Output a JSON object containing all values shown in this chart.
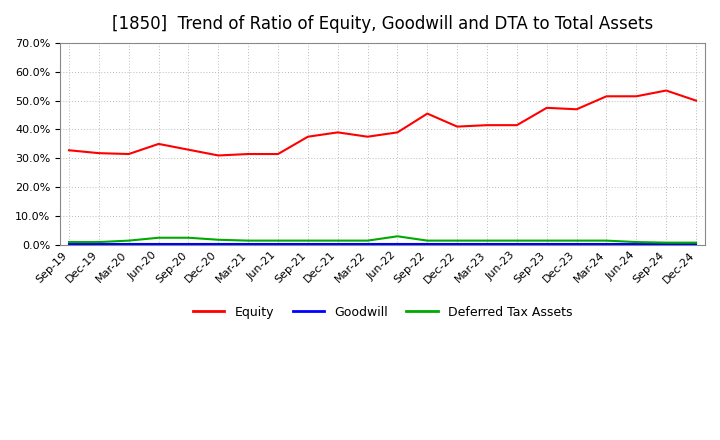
{
  "title": "[1850]  Trend of Ratio of Equity, Goodwill and DTA to Total Assets",
  "x_labels": [
    "Sep-19",
    "Dec-19",
    "Mar-20",
    "Jun-20",
    "Sep-20",
    "Dec-20",
    "Mar-21",
    "Jun-21",
    "Sep-21",
    "Dec-21",
    "Mar-22",
    "Jun-22",
    "Sep-22",
    "Dec-22",
    "Mar-23",
    "Jun-23",
    "Sep-23",
    "Dec-23",
    "Mar-24",
    "Jun-24",
    "Sep-24",
    "Dec-24"
  ],
  "equity": [
    0.328,
    0.318,
    0.315,
    0.35,
    0.33,
    0.31,
    0.315,
    0.315,
    0.375,
    0.39,
    0.375,
    0.39,
    0.455,
    0.41,
    0.415,
    0.415,
    0.475,
    0.47,
    0.515,
    0.515,
    0.535,
    0.5
  ],
  "goodwill": [
    0.003,
    0.003,
    0.003,
    0.003,
    0.003,
    0.003,
    0.003,
    0.003,
    0.003,
    0.003,
    0.003,
    0.003,
    0.003,
    0.003,
    0.003,
    0.003,
    0.003,
    0.003,
    0.003,
    0.003,
    0.003,
    0.003
  ],
  "dta": [
    0.01,
    0.01,
    0.015,
    0.025,
    0.025,
    0.018,
    0.015,
    0.015,
    0.015,
    0.015,
    0.015,
    0.03,
    0.015,
    0.015,
    0.015,
    0.015,
    0.015,
    0.015,
    0.015,
    0.01,
    0.008,
    0.008
  ],
  "equity_color": "#ff0000",
  "goodwill_color": "#0000ff",
  "dta_color": "#00aa00",
  "ylim": [
    0.0,
    0.7
  ],
  "yticks": [
    0.0,
    0.1,
    0.2,
    0.3,
    0.4,
    0.5,
    0.6,
    0.7
  ],
  "background_color": "#ffffff",
  "grid_color": "#bbbbbb",
  "title_fontsize": 12,
  "tick_fontsize": 8,
  "legend_fontsize": 9
}
